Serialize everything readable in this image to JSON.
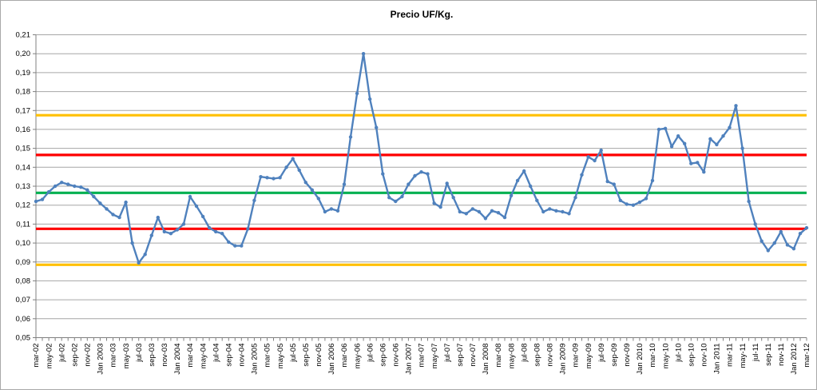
{
  "chart_data": {
    "type": "line",
    "title": "Precio UF/Kg.",
    "legend": "none",
    "grid": "horizontal",
    "y_axis": {
      "min": 0.05,
      "max": 0.21,
      "step": 0.01,
      "tick_labels": [
        "0,21",
        "0,20",
        "0,19",
        "0,18",
        "0,17",
        "0,16",
        "0,15",
        "0,14",
        "0,13",
        "0,12",
        "0,11",
        "0,10",
        "0,09",
        "0,08",
        "0,07",
        "0,06",
        "0,05"
      ]
    },
    "x_axis": {
      "label_every_n_months": 2,
      "tick_labels": [
        "mar-02",
        "may-02",
        "jul-02",
        "sep-02",
        "nov-02",
        "Jan 2003",
        "mar-03",
        "may-03",
        "jul-03",
        "sep-03",
        "nov-03",
        "Jan 2004",
        "mar-04",
        "may-04",
        "jul-04",
        "sep-04",
        "nov-04",
        "Jan 2005",
        "mar-05",
        "may-05",
        "jul-05",
        "sep-05",
        "nov-05",
        "Jan 2006",
        "mar-06",
        "may-06",
        "jul-06",
        "sep-06",
        "nov-06",
        "Jan 2007",
        "mar-07",
        "may-07",
        "jul-07",
        "sep-07",
        "nov-07",
        "Jan 2008",
        "mar-08",
        "may-08",
        "jul-08",
        "sep-08",
        "nov-08",
        "Jan 2009",
        "mar-09",
        "may-09",
        "jul-09",
        "sep-09",
        "nov-09",
        "Jan 2010",
        "mar-10",
        "may-10",
        "jul-10",
        "sep-10",
        "nov-10",
        "Jan 2011",
        "mar-11",
        "may-11",
        "jul-11",
        "sep-11",
        "nov-11",
        "Jan 2012",
        "mar-12"
      ]
    },
    "series": [
      {
        "name": "Precio UF/Kg.",
        "color": "#4f81bd",
        "marker": "circle",
        "values": [
          0.122,
          0.123,
          0.127,
          0.13,
          0.132,
          0.131,
          0.13,
          0.1295,
          0.128,
          0.1245,
          0.121,
          0.118,
          0.115,
          0.1135,
          0.1215,
          0.1,
          0.0895,
          0.094,
          0.104,
          0.1135,
          0.106,
          0.105,
          0.107,
          0.11,
          0.1245,
          0.1195,
          0.114,
          0.108,
          0.106,
          0.105,
          0.1005,
          0.0985,
          0.0985,
          0.1075,
          0.1225,
          0.135,
          0.1345,
          0.134,
          0.1345,
          0.14,
          0.1445,
          0.1385,
          0.132,
          0.128,
          0.1235,
          0.1165,
          0.118,
          0.117,
          0.131,
          0.156,
          0.179,
          0.2,
          0.176,
          0.161,
          0.1365,
          0.124,
          0.122,
          0.1245,
          0.131,
          0.1355,
          0.1375,
          0.1365,
          0.121,
          0.119,
          0.1315,
          0.124,
          0.1165,
          0.1155,
          0.118,
          0.1165,
          0.113,
          0.117,
          0.116,
          0.1135,
          0.125,
          0.133,
          0.138,
          0.13,
          0.1225,
          0.1165,
          0.118,
          0.117,
          0.1165,
          0.1155,
          0.124,
          0.136,
          0.1455,
          0.1435,
          0.149,
          0.1325,
          0.131,
          0.1225,
          0.1205,
          0.12,
          0.1215,
          0.1235,
          0.133,
          0.16,
          0.1605,
          0.151,
          0.1565,
          0.1525,
          0.142,
          0.1425,
          0.1375,
          0.155,
          0.152,
          0.1565,
          0.161,
          0.1725,
          0.15,
          0.122,
          0.11,
          0.101,
          0.096,
          0.1,
          0.106,
          0.099,
          0.097,
          0.105,
          0.108
        ]
      }
    ],
    "reference_lines": [
      {
        "name": "upper-yellow-band",
        "value": 0.1675,
        "color": "#ffc000"
      },
      {
        "name": "upper-red-band",
        "value": 0.1465,
        "color": "#fe0000"
      },
      {
        "name": "mean-green-line",
        "value": 0.1265,
        "color": "#00b050"
      },
      {
        "name": "lower-red-band",
        "value": 0.1075,
        "color": "#fe0000"
      },
      {
        "name": "lower-yellow-band",
        "value": 0.0885,
        "color": "#ffc000"
      }
    ],
    "colors": {
      "gridline": "#a6a6a6",
      "axis": "#808080",
      "background": "#ffffff"
    }
  }
}
